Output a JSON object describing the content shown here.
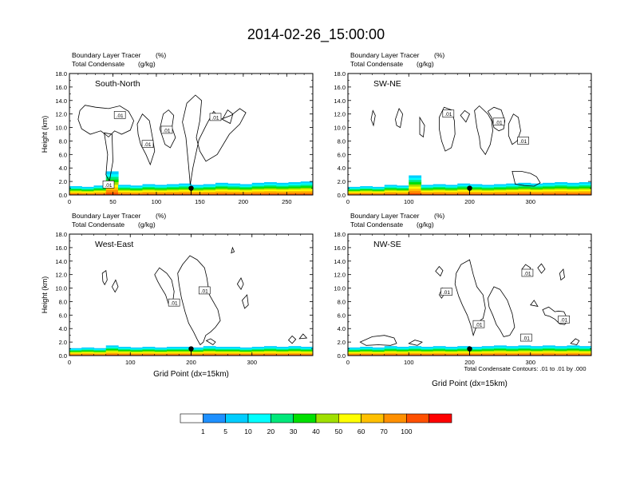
{
  "figure": {
    "title": "2014-02-26_15:00:00",
    "xlabel": "Grid Point (dx=15km)",
    "ylabel": "Height (km)",
    "contour_note": "Total Condensate Contours: .01 to .01 by .000",
    "contour_label": ".01",
    "field_labels": [
      "Boundary Layer Tracer",
      "(%)",
      "Total Condensate",
      "(g/kg)"
    ]
  },
  "colorbar": {
    "levels": [
      "1",
      "5",
      "10",
      "20",
      "30",
      "40",
      "50",
      "60",
      "70",
      "100"
    ],
    "colors": [
      "#ffffff",
      "#1e90ff",
      "#00cdff",
      "#00ffff",
      "#00e87a",
      "#00e000",
      "#a0e000",
      "#ffff00",
      "#ffc000",
      "#ff9000",
      "#ff5000",
      "#ff0000"
    ]
  },
  "chart_data": [
    {
      "type": "contour",
      "panel": "South-North",
      "title": "South-North",
      "ylabel": "Height (km)",
      "xlabel": "",
      "xlim": [
        0,
        280
      ],
      "ylim": [
        0,
        18
      ],
      "xticks": [
        0,
        50,
        100,
        150,
        200,
        250
      ],
      "yticks": [
        0,
        2,
        4,
        6,
        8,
        10,
        12,
        14,
        16,
        18
      ],
      "xticklabels": [
        "0",
        "50",
        "100",
        "150",
        "200",
        "250"
      ],
      "yticklabels": [
        "0.0",
        "2.0",
        "4.0",
        "6.0",
        "8.0",
        "10.0",
        "12.0",
        "14.0",
        "16.0",
        "18.0"
      ],
      "marker_x": 140,
      "marker_height": 1.0,
      "tracer_top_km": [
        1.3,
        1.2,
        1.4,
        3.5,
        1.5,
        1.4,
        1.6,
        1.5,
        1.6,
        1.7,
        1.5,
        1.6,
        1.8,
        1.7,
        1.6,
        1.8,
        1.9,
        1.8,
        1.9,
        2.0
      ],
      "contour_labels": [
        {
          "text": ".01",
          "x": 58,
          "y": 11.8
        },
        {
          "text": ".01",
          "x": 112,
          "y": 9.6
        },
        {
          "text": ".01",
          "x": 90,
          "y": 7.5
        },
        {
          "text": ".01",
          "x": 168,
          "y": 11.5
        },
        {
          "text": ".01",
          "x": 45,
          "y": 1.5
        }
      ]
    },
    {
      "type": "contour",
      "panel": "SW-NE",
      "title": "SW-NE",
      "ylabel": "",
      "xlabel": "",
      "xlim": [
        0,
        400
      ],
      "ylim": [
        0,
        18
      ],
      "xticks": [
        0,
        100,
        200,
        300
      ],
      "yticks": [
        0,
        2,
        4,
        6,
        8,
        10,
        12,
        14,
        16,
        18
      ],
      "xticklabels": [
        "0",
        "100",
        "200",
        "300"
      ],
      "yticklabels": [
        "0.0",
        "2.0",
        "4.0",
        "6.0",
        "8.0",
        "10.0",
        "12.0",
        "14.0",
        "16.0",
        "18.0"
      ],
      "marker_x": 200,
      "marker_height": 1.0,
      "tracer_top_km": [
        1.2,
        1.3,
        1.2,
        1.5,
        1.4,
        2.9,
        1.5,
        1.6,
        1.5,
        1.7,
        1.6,
        1.5,
        1.6,
        1.7,
        1.8,
        1.7,
        1.8,
        1.9,
        1.8,
        1.9
      ],
      "contour_labels": [
        {
          "text": ".01",
          "x": 165,
          "y": 12.0
        },
        {
          "text": ".01",
          "x": 248,
          "y": 10.8
        },
        {
          "text": ".01",
          "x": 288,
          "y": 8.0
        }
      ]
    },
    {
      "type": "contour",
      "panel": "West-East",
      "title": "West-East",
      "ylabel": "Height (km)",
      "xlabel": "Grid Point (dx=15km)",
      "xlim": [
        0,
        400
      ],
      "ylim": [
        0,
        18
      ],
      "xticks": [
        0,
        100,
        200,
        300
      ],
      "yticks": [
        0,
        2,
        4,
        6,
        8,
        10,
        12,
        14,
        16,
        18
      ],
      "xticklabels": [
        "0",
        "100",
        "200",
        "300"
      ],
      "yticklabels": [
        "0.0",
        "2.0",
        "4.0",
        "6.0",
        "8.0",
        "10.0",
        "12.0",
        "14.0",
        "16.0",
        "18.0"
      ],
      "marker_x": 200,
      "marker_height": 1.0,
      "tracer_top_km": [
        1.1,
        1.2,
        1.1,
        1.5,
        1.3,
        1.2,
        1.3,
        1.2,
        1.3,
        1.3,
        1.2,
        1.4,
        1.3,
        1.3,
        1.2,
        1.3,
        1.4,
        1.3,
        1.4,
        1.3
      ],
      "contour_labels": [
        {
          "text": ".01",
          "x": 172,
          "y": 7.8
        },
        {
          "text": ".01",
          "x": 222,
          "y": 9.6
        }
      ]
    },
    {
      "type": "contour",
      "panel": "NW-SE",
      "title": "NW-SE",
      "ylabel": "",
      "xlabel": "Grid Point (dx=15km)",
      "xlim": [
        0,
        400
      ],
      "ylim": [
        0,
        18
      ],
      "xticks": [
        0,
        100,
        200,
        300
      ],
      "yticks": [
        0,
        2,
        4,
        6,
        8,
        10,
        12,
        14,
        16,
        18
      ],
      "xticklabels": [
        "0",
        "100",
        "200",
        "300"
      ],
      "yticklabels": [
        "0.0",
        "2.0",
        "4.0",
        "6.0",
        "8.0",
        "10.0",
        "12.0",
        "14.0",
        "16.0",
        "18.0"
      ],
      "marker_x": 200,
      "marker_height": 1.0,
      "tracer_top_km": [
        1.2,
        1.3,
        1.2,
        1.4,
        1.3,
        1.4,
        1.3,
        1.4,
        1.3,
        1.4,
        1.3,
        1.4,
        1.5,
        1.4,
        1.5,
        1.4,
        1.5,
        1.4,
        1.5,
        1.4
      ],
      "contour_labels": [
        {
          "text": ".01",
          "x": 162,
          "y": 9.4
        },
        {
          "text": ".01",
          "x": 215,
          "y": 4.6
        },
        {
          "text": ".01",
          "x": 295,
          "y": 12.2
        },
        {
          "text": ".01",
          "x": 355,
          "y": 5.3
        },
        {
          "text": ".01",
          "x": 293,
          "y": 2.6
        }
      ]
    }
  ]
}
